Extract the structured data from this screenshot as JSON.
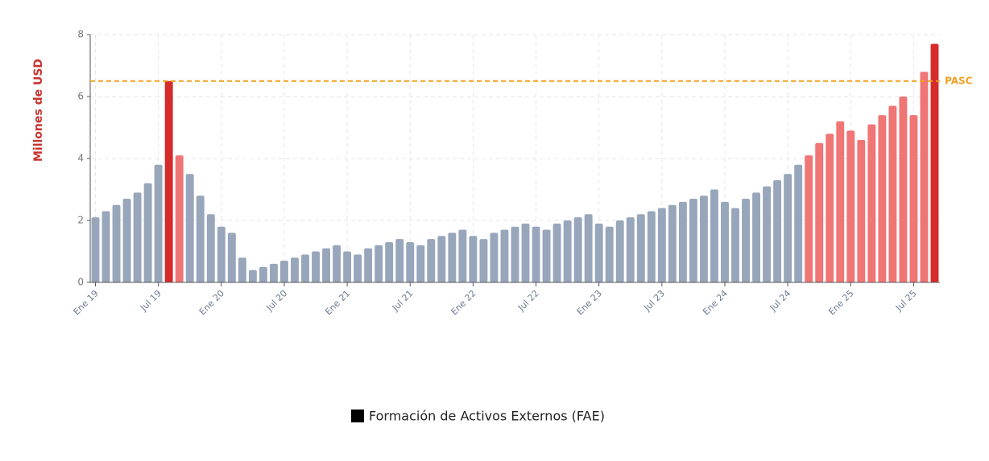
{
  "chart_data": {
    "type": "bar",
    "y_label": "Millones de USD",
    "categories": [
      "Ene 19",
      null,
      null,
      null,
      null,
      null,
      "Jul 19",
      null,
      null,
      null,
      null,
      null,
      "Ene 20",
      null,
      null,
      null,
      null,
      null,
      "Jul 20",
      null,
      null,
      null,
      null,
      null,
      "Ene 21",
      null,
      null,
      null,
      null,
      null,
      "Jul 21",
      null,
      null,
      null,
      null,
      null,
      "Ene 22",
      null,
      null,
      null,
      null,
      null,
      "Jul 22",
      null,
      null,
      null,
      null,
      null,
      "Ene 23",
      null,
      null,
      null,
      null,
      null,
      "Jul 23",
      null,
      null,
      null,
      null,
      null,
      "Ene 24",
      null,
      null,
      null,
      null,
      null,
      "Jul 24",
      null,
      null,
      null,
      null,
      null,
      "Ene 25",
      null,
      null,
      null,
      null,
      null,
      "Jul 25",
      null,
      null
    ],
    "series": [
      {
        "name": "Formación de Activos Externos (FAE)",
        "color": "#000000",
        "values": [
          2.1,
          2.3,
          2.5,
          2.7,
          2.9,
          3.2,
          3.8,
          6.5,
          4.1,
          3.5,
          2.8,
          2.2,
          1.8,
          1.6,
          0.8,
          0.4,
          0.5,
          0.6,
          0.7,
          0.8,
          0.9,
          1.0,
          1.1,
          1.2,
          1.0,
          0.9,
          1.1,
          1.2,
          1.3,
          1.4,
          1.3,
          1.2,
          1.4,
          1.5,
          1.6,
          1.7,
          1.5,
          1.4,
          1.6,
          1.7,
          1.8,
          1.9,
          1.8,
          1.7,
          1.9,
          2.0,
          2.1,
          2.2,
          1.9,
          1.8,
          2.0,
          2.1,
          2.2,
          2.3,
          2.4,
          2.5,
          2.6,
          2.7,
          2.8,
          3.0,
          2.6,
          2.4,
          2.7,
          2.9,
          3.1,
          3.3,
          3.5,
          3.8,
          4.1,
          4.5,
          4.8,
          5.2,
          4.9,
          4.6,
          5.1,
          5.4,
          5.7,
          6.0,
          5.4,
          6.8,
          7.7
        ],
        "colors": [
          "#98a6bb",
          "#98a6bb",
          "#98a6bb",
          "#98a6bb",
          "#98a6bb",
          "#98a6bb",
          "#98a6bb",
          "#d62b2b",
          "#f07575",
          "#98a6bb",
          "#98a6bb",
          "#98a6bb",
          "#98a6bb",
          "#98a6bb",
          "#98a6bb",
          "#98a6bb",
          "#98a6bb",
          "#98a6bb",
          "#98a6bb",
          "#98a6bb",
          "#98a6bb",
          "#98a6bb",
          "#98a6bb",
          "#98a6bb",
          "#98a6bb",
          "#98a6bb",
          "#98a6bb",
          "#98a6bb",
          "#98a6bb",
          "#98a6bb",
          "#98a6bb",
          "#98a6bb",
          "#98a6bb",
          "#98a6bb",
          "#98a6bb",
          "#98a6bb",
          "#98a6bb",
          "#98a6bb",
          "#98a6bb",
          "#98a6bb",
          "#98a6bb",
          "#98a6bb",
          "#98a6bb",
          "#98a6bb",
          "#98a6bb",
          "#98a6bb",
          "#98a6bb",
          "#98a6bb",
          "#98a6bb",
          "#98a6bb",
          "#98a6bb",
          "#98a6bb",
          "#98a6bb",
          "#98a6bb",
          "#98a6bb",
          "#98a6bb",
          "#98a6bb",
          "#98a6bb",
          "#98a6bb",
          "#98a6bb",
          "#98a6bb",
          "#98a6bb",
          "#98a6bb",
          "#98a6bb",
          "#98a6bb",
          "#98a6bb",
          "#98a6bb",
          "#98a6bb",
          "#f07575",
          "#f07575",
          "#f07575",
          "#f07575",
          "#f07575",
          "#f07575",
          "#f07575",
          "#f07575",
          "#f07575",
          "#f07575",
          "#f07575",
          "#f07575",
          "#d62b2b"
        ]
      }
    ],
    "ylim": [
      0,
      8
    ],
    "yticks": [
      0,
      2,
      4,
      6,
      8
    ],
    "grid": true,
    "reference_line": {
      "value": 6.5,
      "label": "PASC",
      "color": "#f0a020"
    },
    "legend": "bottom"
  }
}
